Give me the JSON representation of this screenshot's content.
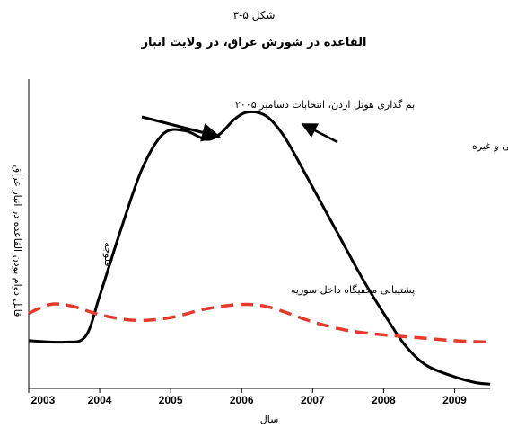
{
  "figure_label": "شکل ۵-۳",
  "chart_data": {
    "type": "line",
    "title": "القاعده در شورش عراق، در ولایت انبار",
    "xlabel": "سال",
    "ylabel": "قابل دوام بودن القاعده در انبار عراق",
    "x_ticks": [
      "2003",
      "2004",
      "2005",
      "2006",
      "2007",
      "2008",
      "2009"
    ],
    "xlim": [
      2003,
      2009.5
    ],
    "ylim": [
      0,
      10
    ],
    "grid": false,
    "series": [
      {
        "style": "solid",
        "color": "#000000",
        "x": [
          2003.0,
          2003.5,
          2003.8,
          2004.0,
          2004.3,
          2004.6,
          2004.9,
          2005.2,
          2005.5,
          2005.7,
          2005.9,
          2006.1,
          2006.35,
          2006.6,
          2006.9,
          2007.3,
          2007.7,
          2008.0,
          2008.3,
          2008.6,
          2009.0,
          2009.3,
          2009.5
        ],
        "y": [
          1.65,
          1.6,
          1.8,
          3.2,
          5.5,
          7.6,
          8.8,
          8.9,
          8.6,
          8.8,
          9.3,
          9.55,
          9.4,
          8.7,
          7.4,
          5.6,
          3.8,
          2.6,
          1.5,
          0.8,
          0.4,
          0.2,
          0.15
        ]
      },
      {
        "name": "پشتیبانی مخفیگاه داخل سوریه",
        "style": "dashed",
        "color": "#e53a2c",
        "x": [
          2003.0,
          2003.3,
          2003.6,
          2004.0,
          2004.5,
          2005.0,
          2005.5,
          2006.0,
          2006.4,
          2007.0,
          2007.5,
          2008.0,
          2008.5,
          2009.0,
          2009.5
        ],
        "y": [
          2.6,
          2.9,
          2.85,
          2.55,
          2.35,
          2.45,
          2.75,
          2.9,
          2.8,
          2.3,
          2.0,
          1.85,
          1.75,
          1.65,
          1.6
        ]
      }
    ],
    "annotations": [
      {
        "text": "بم گذاری هوتل اردن، انتخابات دسامبر ۲۰۰۵",
        "points_to": [
          2005.6,
          8.6
        ]
      },
      {
        "text": "فشار بر مخفیگاه های داخلی و غیره",
        "points_to": [
          2006.9,
          8.9
        ]
      },
      {
        "text": "فلوجه",
        "points_to": [
          2004.1,
          4.0
        ]
      },
      {
        "text": "پشتیبانی مخفیگاه داخل سوریه",
        "points_to": [
          2006.0,
          3.0
        ]
      }
    ]
  }
}
